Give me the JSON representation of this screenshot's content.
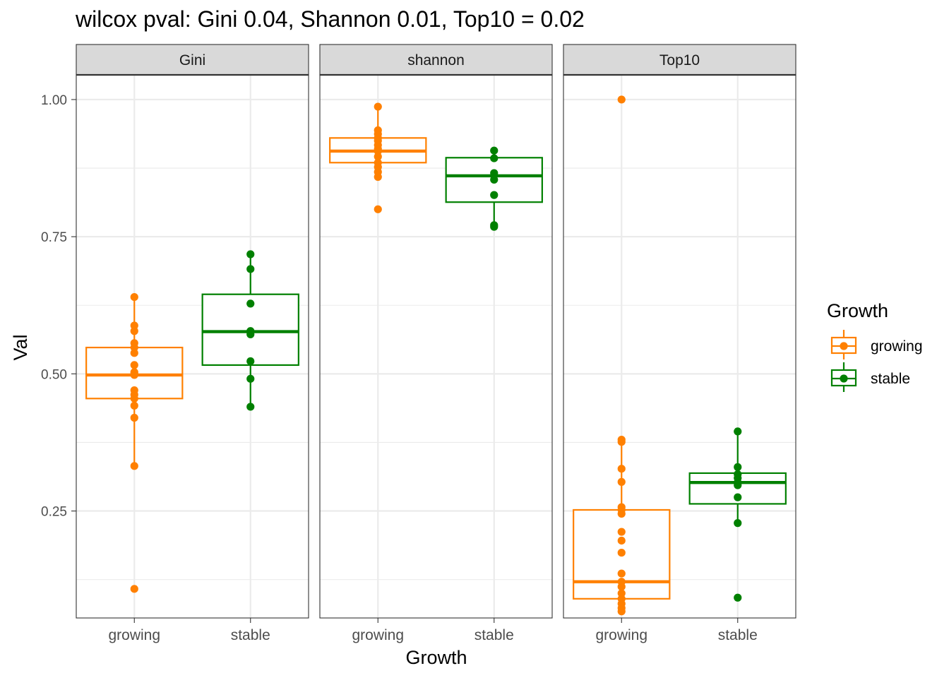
{
  "chart_data": {
    "type": "boxplot",
    "title": "wilcox pval: Gini 0.04, Shannon 0.01, Top10 = 0.02",
    "xlabel": "Growth",
    "ylabel": "Val",
    "categories": [
      "growing",
      "stable"
    ],
    "ylim": [
      0.055,
      1.045
    ],
    "yticks": [
      0.25,
      0.5,
      0.75,
      1.0
    ],
    "ytick_labels": [
      "0.25",
      "0.50",
      "0.75",
      "1.00"
    ],
    "grid": true,
    "legend": {
      "title": "Growth",
      "position": "right",
      "entries": [
        {
          "label": "growing",
          "color": "#ff8000"
        },
        {
          "label": "stable",
          "color": "#008000"
        }
      ]
    },
    "colors": {
      "growing": "#ff8000",
      "stable": "#008000"
    },
    "panels": [
      {
        "name": "Gini",
        "groups": [
          {
            "category": "growing",
            "box": {
              "lower_whisker": 0.332,
              "q1": 0.455,
              "median": 0.498,
              "q3": 0.548,
              "upper_whisker": 0.64
            },
            "points": [
              0.108,
              0.332,
              0.42,
              0.442,
              0.455,
              0.462,
              0.47,
              0.498,
              0.5,
              0.503,
              0.516,
              0.538,
              0.548,
              0.556,
              0.578,
              0.588,
              0.64
            ]
          },
          {
            "category": "stable",
            "box": {
              "lower_whisker": 0.44,
              "q1": 0.516,
              "median": 0.577,
              "q3": 0.645,
              "upper_whisker": 0.718
            },
            "points": [
              0.44,
              0.491,
              0.523,
              0.572,
              0.578,
              0.628,
              0.691,
              0.718
            ]
          }
        ]
      },
      {
        "name": "shannon",
        "groups": [
          {
            "category": "growing",
            "box": {
              "lower_whisker": 0.859,
              "q1": 0.885,
              "median": 0.906,
              "q3": 0.93,
              "upper_whisker": 0.987
            },
            "points": [
              0.8,
              0.859,
              0.868,
              0.877,
              0.885,
              0.896,
              0.906,
              0.91,
              0.917,
              0.925,
              0.93,
              0.937,
              0.944,
              0.987
            ]
          },
          {
            "category": "stable",
            "box": {
              "lower_whisker": 0.768,
              "q1": 0.813,
              "median": 0.861,
              "q3": 0.894,
              "upper_whisker": 0.907
            },
            "points": [
              0.768,
              0.771,
              0.826,
              0.854,
              0.866,
              0.893,
              0.907
            ]
          }
        ]
      },
      {
        "name": "Top10",
        "groups": [
          {
            "category": "growing",
            "box": {
              "lower_whisker": 0.067,
              "q1": 0.09,
              "median": 0.121,
              "q3": 0.252,
              "upper_whisker": 0.38
            },
            "points": [
              0.067,
              0.073,
              0.081,
              0.09,
              0.1,
              0.112,
              0.121,
              0.136,
              0.174,
              0.196,
              0.212,
              0.245,
              0.252,
              0.257,
              0.303,
              0.327,
              0.376,
              0.38,
              1.0
            ]
          },
          {
            "category": "stable",
            "box": {
              "lower_whisker": 0.228,
              "q1": 0.263,
              "median": 0.302,
              "q3": 0.319,
              "upper_whisker": 0.395
            },
            "points": [
              0.092,
              0.228,
              0.275,
              0.297,
              0.302,
              0.31,
              0.317,
              0.33,
              0.395
            ]
          }
        ]
      }
    ]
  }
}
